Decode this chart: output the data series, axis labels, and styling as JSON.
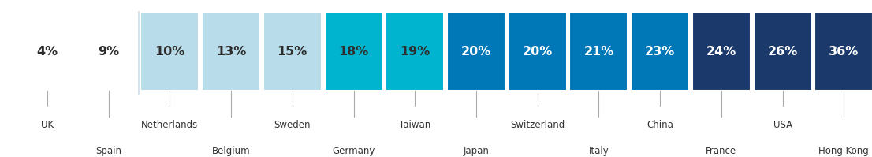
{
  "countries": [
    "UK",
    "Spain",
    "Netherlands",
    "Belgium",
    "Sweden",
    "Germany",
    "Taiwan",
    "Japan",
    "Switzerland",
    "Italy",
    "China",
    "France",
    "USA",
    "Hong Kong"
  ],
  "values": [
    4,
    9,
    10,
    13,
    15,
    18,
    19,
    20,
    20,
    21,
    23,
    24,
    26,
    36
  ],
  "bar_colors": [
    null,
    null,
    "#b8dcea",
    "#b8dcea",
    "#b8dcea",
    "#00b4d0",
    "#00b4d0",
    "#0077b6",
    "#0077b6",
    "#0077b6",
    "#0077b6",
    "#1b3a6b",
    "#1b3a6b",
    "#1b3a6b"
  ],
  "pct_text_colors": [
    "#2d2d2d",
    "#2d2d2d",
    "#2d2d2d",
    "#2d2d2d",
    "#2d2d2d",
    "#2d2d2d",
    "#2d2d2d",
    "#ffffff",
    "#ffffff",
    "#ffffff",
    "#ffffff",
    "#ffffff",
    "#ffffff",
    "#ffffff"
  ],
  "label_row1_indices": [
    0,
    2,
    4,
    6,
    8,
    10,
    12
  ],
  "label_row1_names": [
    "UK",
    "Netherlands",
    "Sweden",
    "Taiwan",
    "Switzerland",
    "China",
    "USA"
  ],
  "label_row2_indices": [
    1,
    3,
    5,
    7,
    9,
    11,
    13
  ],
  "label_row2_names": [
    "Spain",
    "Belgium",
    "Germany",
    "Japan",
    "Italy",
    "France",
    "Hong Kong"
  ],
  "separator_after_index": 1,
  "background_color": "#ffffff",
  "bar_text_fontsize": 11.5,
  "label_fontsize": 8.5
}
